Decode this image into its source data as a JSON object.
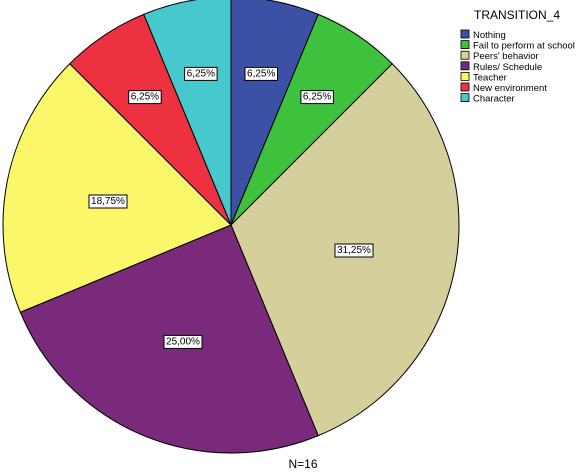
{
  "chart_data": {
    "type": "pie",
    "legend_title": "TRANSITION_4",
    "legend_position": "top-right",
    "footnote": "N=16",
    "slices": [
      {
        "name": "Nothing",
        "value": 6.25,
        "label": "6,25%",
        "color": "#3c50a5"
      },
      {
        "name": "Fail to perform at school",
        "value": 6.25,
        "label": "6,25%",
        "color": "#3ec13c"
      },
      {
        "name": "Peers' behavior",
        "value": 31.25,
        "label": "31,25%",
        "color": "#d5cf9c"
      },
      {
        "name": "Rules/ Schedule",
        "value": 25.0,
        "label": "25,00%",
        "color": "#7a2a7a"
      },
      {
        "name": "Teacher",
        "value": 18.75,
        "label": "18,75%",
        "color": "#fbf76a"
      },
      {
        "name": "New environment",
        "value": 6.25,
        "label": "6,25%",
        "color": "#ee3140"
      },
      {
        "name": "Character",
        "value": 6.25,
        "label": "6,25%",
        "color": "#46c8cc"
      }
    ]
  }
}
